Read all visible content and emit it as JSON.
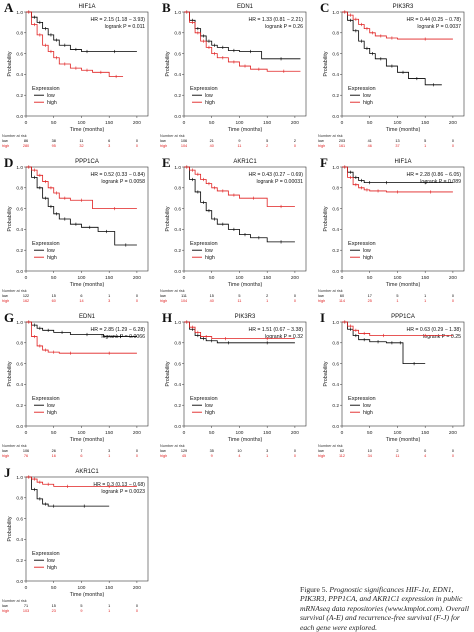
{
  "colors": {
    "low": "#000000",
    "high": "#e02020"
  },
  "shared": {
    "ylabel": "Probability",
    "xlabel": "Time (months)",
    "legend_title": "Expression",
    "legend_low": "low",
    "legend_high": "high",
    "risk_title": "Number at risk",
    "risk_low_label": "low",
    "risk_high_label": "high",
    "x_ticks": [
      0,
      50,
      100,
      150,
      200
    ],
    "y_ticks": [
      "0.0",
      "0.2",
      "0.4",
      "0.6",
      "0.8",
      "1.0"
    ]
  },
  "caption": {
    "label": "Figure 5.",
    "text": "Prognostic significances HIF-1α, EDN1, PIK3R3, PPP1CA, and AKR1C1 expression in public mRNAseq data repositories (www.kmplot.com). Overall survival (A-E) and recurrence-free survival (F-J) for each gene were explored."
  },
  "chart_data": [
    {
      "type": "line",
      "letter": "A",
      "title": "HIF1A",
      "hr": "HR = 2.15 (1.18 − 3.93)",
      "logrank": "logrank P = 0.011",
      "xlim": [
        0,
        220
      ],
      "ylim": [
        0,
        1
      ],
      "series": [
        {
          "name": "low",
          "x": [
            0,
            10,
            20,
            30,
            40,
            50,
            60,
            80,
            100,
            120,
            200
          ],
          "y": [
            1.0,
            0.95,
            0.9,
            0.84,
            0.78,
            0.73,
            0.68,
            0.64,
            0.62,
            0.62,
            0.62
          ]
        },
        {
          "name": "high",
          "x": [
            0,
            10,
            20,
            30,
            40,
            50,
            60,
            80,
            100,
            120,
            150,
            175
          ],
          "y": [
            1.0,
            0.88,
            0.78,
            0.68,
            0.62,
            0.56,
            0.5,
            0.46,
            0.44,
            0.42,
            0.38,
            0.38
          ]
        }
      ],
      "risk": {
        "x": [
          0,
          50,
          100,
          150,
          200
        ],
        "low": [
          "86",
          "38",
          "11",
          "6",
          "0"
        ],
        "high": [
          "280",
          "95",
          "32",
          "3",
          "0"
        ]
      }
    },
    {
      "type": "line",
      "letter": "B",
      "title": "EDN1",
      "hr": "HR = 1.33 (0.81 − 2.21)",
      "logrank": "logrank P = 0.26",
      "xlim": [
        0,
        220
      ],
      "ylim": [
        0,
        1
      ],
      "series": [
        {
          "name": "low",
          "x": [
            0,
            10,
            20,
            30,
            40,
            50,
            60,
            80,
            100,
            140,
            210
          ],
          "y": [
            1.0,
            0.92,
            0.84,
            0.77,
            0.72,
            0.68,
            0.66,
            0.63,
            0.62,
            0.55,
            0.55
          ]
        },
        {
          "name": "high",
          "x": [
            0,
            10,
            20,
            30,
            40,
            50,
            60,
            80,
            100,
            120,
            150,
            210
          ],
          "y": [
            1.0,
            0.9,
            0.8,
            0.72,
            0.66,
            0.6,
            0.56,
            0.52,
            0.48,
            0.45,
            0.43,
            0.43
          ]
        }
      ],
      "risk": {
        "x": [
          0,
          50,
          100,
          150,
          200
        ],
        "low": [
          "106",
          "21",
          "9",
          "5",
          "2"
        ],
        "high": [
          "104",
          "40",
          "11",
          "2",
          "0"
        ]
      }
    },
    {
      "type": "line",
      "letter": "C",
      "title": "PIK3R3",
      "hr": "HR = 0.44 (0.25 − 0.78)",
      "logrank": "logrank P = 0.0037",
      "xlim": [
        0,
        220
      ],
      "ylim": [
        0,
        1
      ],
      "series": [
        {
          "name": "low",
          "x": [
            0,
            10,
            20,
            30,
            40,
            50,
            60,
            80,
            100,
            120,
            150,
            180
          ],
          "y": [
            1.0,
            0.92,
            0.82,
            0.72,
            0.65,
            0.6,
            0.55,
            0.48,
            0.42,
            0.36,
            0.3,
            0.3
          ]
        },
        {
          "name": "high",
          "x": [
            0,
            10,
            20,
            30,
            40,
            50,
            60,
            80,
            100,
            200
          ],
          "y": [
            1.0,
            0.97,
            0.93,
            0.88,
            0.84,
            0.8,
            0.77,
            0.75,
            0.74,
            0.74
          ]
        }
      ],
      "risk": {
        "x": [
          0,
          50,
          100,
          150,
          200
        ],
        "low": [
          "203",
          "41",
          "13",
          "5",
          "0"
        ],
        "high": [
          "161",
          "46",
          "37",
          "1",
          "0"
        ]
      }
    },
    {
      "type": "line",
      "letter": "D",
      "title": "PPP1CA",
      "hr": "HR = 0.52 (0.33 − 0.84)",
      "logrank": "logrank P = 0.0058",
      "xlim": [
        0,
        220
      ],
      "ylim": [
        0,
        1
      ],
      "series": [
        {
          "name": "low",
          "x": [
            0,
            10,
            20,
            30,
            40,
            50,
            60,
            80,
            100,
            130,
            160,
            200
          ],
          "y": [
            1.0,
            0.9,
            0.8,
            0.7,
            0.62,
            0.55,
            0.5,
            0.45,
            0.42,
            0.38,
            0.25,
            0.25
          ]
        },
        {
          "name": "high",
          "x": [
            0,
            10,
            20,
            30,
            40,
            50,
            60,
            80,
            120,
            200
          ],
          "y": [
            1.0,
            0.97,
            0.92,
            0.86,
            0.8,
            0.75,
            0.7,
            0.68,
            0.6,
            0.6
          ]
        }
      ],
      "risk": {
        "x": [
          0,
          50,
          100,
          150,
          200
        ],
        "low": [
          "122",
          "15",
          "6",
          "1",
          "0"
        ],
        "high": [
          "162",
          "60",
          "14",
          "3",
          "0"
        ]
      }
    },
    {
      "type": "line",
      "letter": "E",
      "title": "AKR1C1",
      "hr": "HR = 0.43 (0.27 − 0.69)",
      "logrank": "logrank P = 0.00031",
      "xlim": [
        0,
        220
      ],
      "ylim": [
        0,
        1
      ],
      "series": [
        {
          "name": "low",
          "x": [
            0,
            10,
            20,
            30,
            40,
            50,
            60,
            80,
            100,
            120,
            150,
            200
          ],
          "y": [
            1.0,
            0.88,
            0.76,
            0.66,
            0.58,
            0.5,
            0.45,
            0.4,
            0.35,
            0.32,
            0.28,
            0.28
          ]
        },
        {
          "name": "high",
          "x": [
            0,
            10,
            20,
            30,
            40,
            50,
            60,
            80,
            100,
            150,
            200
          ],
          "y": [
            1.0,
            0.97,
            0.93,
            0.88,
            0.84,
            0.8,
            0.77,
            0.73,
            0.7,
            0.62,
            0.62
          ]
        }
      ],
      "risk": {
        "x": [
          0,
          50,
          100,
          150,
          200
        ],
        "low": [
          "111",
          "15",
          "5",
          "2",
          "0"
        ],
        "high": [
          "104",
          "40",
          "11",
          "1",
          "0"
        ]
      }
    },
    {
      "type": "line",
      "letter": "F",
      "title": "HIF1A",
      "hr": "HR = 2.28 (0.86 − 6.05)",
      "logrank": "logrank P = 0.089",
      "xlim": [
        0,
        220
      ],
      "ylim": [
        0,
        1
      ],
      "series": [
        {
          "name": "low",
          "x": [
            0,
            10,
            20,
            30,
            40,
            60,
            100,
            200
          ],
          "y": [
            1.0,
            0.95,
            0.9,
            0.87,
            0.85,
            0.85,
            0.85,
            0.85
          ]
        },
        {
          "name": "high",
          "x": [
            0,
            10,
            20,
            30,
            40,
            50,
            80,
            120,
            200
          ],
          "y": [
            1.0,
            0.9,
            0.83,
            0.8,
            0.78,
            0.77,
            0.76,
            0.76,
            0.76
          ]
        }
      ],
      "risk": {
        "x": [
          0,
          50,
          100,
          150,
          200
        ],
        "low": [
          "60",
          "17",
          "5",
          "1",
          "0"
        ],
        "high": [
          "114",
          "25",
          "1",
          "1",
          "0"
        ]
      }
    },
    {
      "type": "line",
      "letter": "G",
      "title": "EDN1",
      "hr": "HR = 2.85 (1.29 − 6.28)",
      "logrank": "logrank P = 0.0066",
      "xlim": [
        0,
        220
      ],
      "ylim": [
        0,
        1
      ],
      "series": [
        {
          "name": "low",
          "x": [
            0,
            10,
            20,
            30,
            50,
            80,
            140,
            200
          ],
          "y": [
            1.0,
            0.97,
            0.94,
            0.92,
            0.9,
            0.88,
            0.86,
            0.86
          ]
        },
        {
          "name": "high",
          "x": [
            0,
            10,
            20,
            30,
            40,
            60,
            100,
            200
          ],
          "y": [
            1.0,
            0.86,
            0.77,
            0.73,
            0.71,
            0.7,
            0.7,
            0.7
          ]
        }
      ],
      "risk": {
        "x": [
          0,
          50,
          100,
          150,
          200
        ],
        "low": [
          "106",
          "26",
          "7",
          "3",
          "0"
        ],
        "high": [
          "76",
          "16",
          "6",
          "1",
          "0"
        ]
      }
    },
    {
      "type": "line",
      "letter": "H",
      "title": "PIK3R3",
      "hr": "HR = 1.51 (0.67 − 3.38)",
      "logrank": "logrank P = 0.32",
      "xlim": [
        0,
        220
      ],
      "ylim": [
        0,
        1
      ],
      "series": [
        {
          "name": "low",
          "x": [
            0,
            10,
            20,
            30,
            40,
            60,
            100,
            200
          ],
          "y": [
            1.0,
            0.93,
            0.87,
            0.84,
            0.82,
            0.8,
            0.8,
            0.8
          ]
        },
        {
          "name": "high",
          "x": [
            0,
            10,
            20,
            30,
            50,
            100,
            200
          ],
          "y": [
            1.0,
            0.95,
            0.9,
            0.86,
            0.84,
            0.84,
            0.84
          ]
        }
      ],
      "risk": {
        "x": [
          0,
          50,
          100,
          150,
          200
        ],
        "low": [
          "129",
          "35",
          "10",
          "3",
          "0"
        ],
        "high": [
          "45",
          "9",
          "4",
          "1",
          "0"
        ]
      }
    },
    {
      "type": "line",
      "letter": "I",
      "title": "PPP1CA",
      "hr": "HR = 0.63 (0.29 − 1.38)",
      "logrank": "logrank P = 0.25",
      "xlim": [
        0,
        220
      ],
      "ylim": [
        0,
        1
      ],
      "series": [
        {
          "name": "low",
          "x": [
            0,
            10,
            20,
            30,
            50,
            80,
            100,
            110,
            150
          ],
          "y": [
            1.0,
            0.93,
            0.87,
            0.83,
            0.81,
            0.8,
            0.8,
            0.6,
            0.6
          ]
        },
        {
          "name": "high",
          "x": [
            0,
            10,
            20,
            30,
            50,
            100,
            200
          ],
          "y": [
            1.0,
            0.96,
            0.92,
            0.89,
            0.87,
            0.87,
            0.87
          ]
        }
      ],
      "risk": {
        "x": [
          0,
          50,
          100,
          150,
          200
        ],
        "low": [
          "62",
          "10",
          "2",
          "0",
          "0"
        ],
        "high": [
          "112",
          "34",
          "11",
          "4",
          "0"
        ]
      }
    },
    {
      "type": "line",
      "letter": "J",
      "title": "AKR1C1",
      "hr": "HR = 0.3 (0.13 − 0.68)",
      "logrank": "logrank P = 0.0023",
      "xlim": [
        0,
        220
      ],
      "ylim": [
        0,
        1
      ],
      "series": [
        {
          "name": "low",
          "x": [
            0,
            10,
            20,
            30,
            40,
            60,
            150
          ],
          "y": [
            1.0,
            0.88,
            0.79,
            0.74,
            0.72,
            0.72,
            0.72
          ]
        },
        {
          "name": "high",
          "x": [
            0,
            10,
            20,
            30,
            50,
            100,
            200
          ],
          "y": [
            1.0,
            0.98,
            0.95,
            0.93,
            0.91,
            0.91,
            0.91
          ]
        }
      ],
      "risk": {
        "x": [
          0,
          50,
          100,
          150,
          200
        ],
        "low": [
          "71",
          "15",
          "5",
          "1",
          "0"
        ],
        "high": [
          "103",
          "23",
          "9",
          "1",
          "0"
        ]
      }
    }
  ]
}
